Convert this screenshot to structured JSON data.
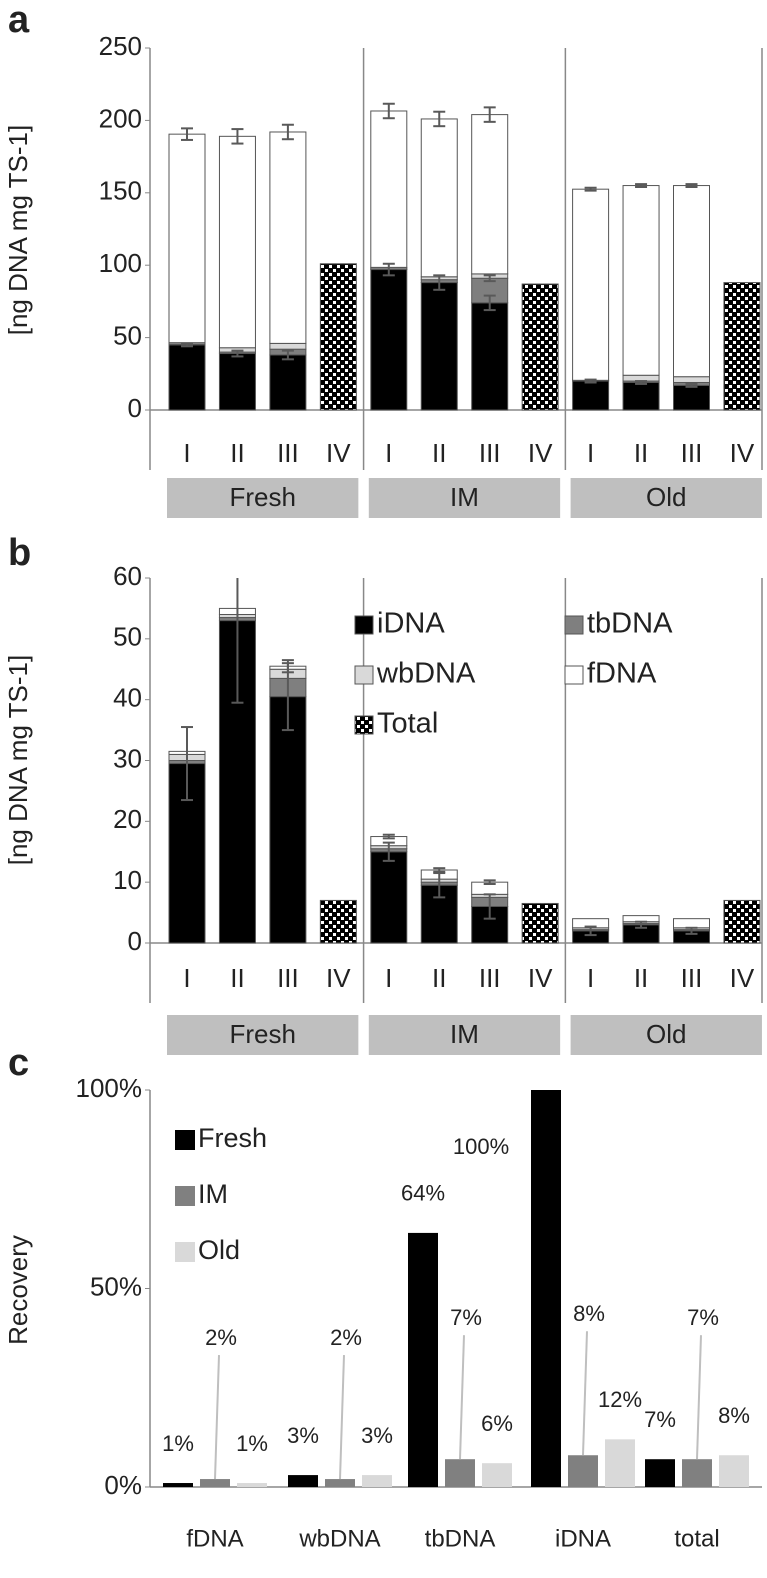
{
  "chart_data": [
    {
      "panel_label": "a",
      "type": "stacked_bar",
      "y_label": "[ng DNA mg TS-1]",
      "categories": [
        "I",
        "II",
        "III",
        "IV",
        "I",
        "II",
        "III",
        "IV",
        "I",
        "II",
        "III",
        "IV"
      ],
      "groups": [
        "Fresh",
        "IM",
        "Old"
      ],
      "ylim": [
        0,
        250
      ],
      "yticks": [
        0,
        50,
        100,
        150,
        200,
        250
      ],
      "series": [
        {
          "color": "#000000",
          "values": [
            45,
            39,
            38,
            null,
            97,
            88,
            74,
            null,
            20,
            19,
            17,
            null
          ],
          "errors": [
            1,
            2,
            3,
            null,
            4,
            5,
            5,
            null,
            1,
            1,
            1,
            null
          ]
        },
        {
          "color": "#7f7f7f",
          "values": [
            0.5,
            1,
            4,
            null,
            0.5,
            2,
            17,
            null,
            0,
            1,
            2,
            null
          ],
          "errors": [
            null,
            null,
            null,
            null,
            null,
            null,
            2,
            null,
            null,
            null,
            null,
            null
          ]
        },
        {
          "color": "#d9d9d9",
          "values": [
            1,
            3,
            4,
            null,
            1,
            2,
            3,
            null,
            0.5,
            4,
            4,
            null
          ],
          "errors": [
            null,
            null,
            null,
            null,
            null,
            null,
            null,
            null,
            null,
            null,
            null,
            null
          ]
        },
        {
          "color": "#ffffff",
          "values": [
            144,
            146,
            146,
            null,
            108,
            109,
            110,
            null,
            132,
            131,
            132,
            null
          ],
          "errors": [
            4,
            5,
            5,
            null,
            5,
            5,
            5,
            null,
            1,
            1,
            1,
            null
          ]
        },
        {
          "pattern": "checker",
          "values": [
            null,
            null,
            null,
            101,
            null,
            null,
            null,
            87,
            null,
            null,
            null,
            88
          ],
          "errors": [
            null,
            null,
            null,
            null,
            null,
            null,
            null,
            null,
            null,
            null,
            null,
            null
          ]
        }
      ]
    },
    {
      "panel_label": "b",
      "type": "stacked_bar",
      "y_label": "[ng DNA mg TS-1]",
      "categories": [
        "I",
        "II",
        "III",
        "IV",
        "I",
        "II",
        "III",
        "IV",
        "I",
        "II",
        "III",
        "IV"
      ],
      "groups": [
        "Fresh",
        "IM",
        "Old"
      ],
      "ylim": [
        0,
        60
      ],
      "yticks": [
        0,
        10,
        20,
        30,
        40,
        50,
        60
      ],
      "series": [
        {
          "name": "iDNA",
          "color": "#000000",
          "values": [
            29.5,
            53,
            40.5,
            null,
            15,
            9.5,
            6,
            null,
            2,
            3,
            2,
            null
          ],
          "errors": [
            6,
            13.5,
            5.5,
            null,
            1.5,
            2,
            2,
            null,
            0.7,
            0.5,
            0.5,
            null
          ]
        },
        {
          "name": "tbDNA",
          "color": "#7f7f7f",
          "values": [
            0.5,
            0.5,
            3,
            null,
            0.5,
            0.5,
            1.5,
            null,
            0.2,
            0.2,
            0.2,
            null
          ],
          "errors": [
            null,
            null,
            null,
            null,
            null,
            null,
            null,
            null,
            null,
            null,
            null,
            null
          ]
        },
        {
          "name": "wbDNA",
          "color": "#d9d9d9",
          "values": [
            1,
            0.5,
            1.5,
            null,
            0.5,
            0.5,
            0.5,
            null,
            0.3,
            0.3,
            0.3,
            null
          ],
          "errors": [
            null,
            null,
            null,
            null,
            null,
            null,
            null,
            null,
            null,
            null,
            null,
            null
          ]
        },
        {
          "name": "fDNA",
          "color": "#ffffff",
          "values": [
            0.5,
            1,
            0.5,
            null,
            1.5,
            1.5,
            2,
            null,
            1.5,
            1,
            1.5,
            null
          ],
          "errors": [
            null,
            null,
            1,
            null,
            0.3,
            0.3,
            0.3,
            null,
            null,
            null,
            null,
            null
          ]
        },
        {
          "name": "Total",
          "pattern": "checker",
          "values": [
            null,
            null,
            null,
            7,
            null,
            null,
            null,
            6.5,
            null,
            null,
            null,
            7
          ],
          "errors": [
            null,
            null,
            null,
            null,
            null,
            null,
            null,
            null,
            null,
            null,
            null,
            null
          ]
        }
      ]
    },
    {
      "panel_label": "c",
      "type": "bar",
      "y_label": "Recovery",
      "categories": [
        "fDNA",
        "wbDNA",
        "tbDNA",
        "iDNA",
        "total"
      ],
      "ylim": [
        0,
        100
      ],
      "yticks": [
        {
          "value": 0,
          "label": "0%"
        },
        {
          "value": 50,
          "label": "50%"
        },
        {
          "value": 100,
          "label": "100%"
        }
      ],
      "series": [
        {
          "name": "Fresh",
          "color": "#000000",
          "values": [
            1,
            3,
            64,
            100,
            7
          ],
          "value_labels": [
            "1%",
            "3%",
            "64%",
            "100%",
            "7%"
          ]
        },
        {
          "name": "IM",
          "color": "#808080",
          "values": [
            2,
            2,
            7,
            8,
            7
          ],
          "value_labels": [
            "2%",
            "2%",
            "7%",
            "8%",
            "7%"
          ]
        },
        {
          "name": "Old",
          "color": "#d9d9d9",
          "values": [
            1,
            3,
            6,
            12,
            8
          ],
          "value_labels": [
            "1%",
            "3%",
            "6%",
            "12%",
            "8%"
          ]
        }
      ]
    }
  ]
}
